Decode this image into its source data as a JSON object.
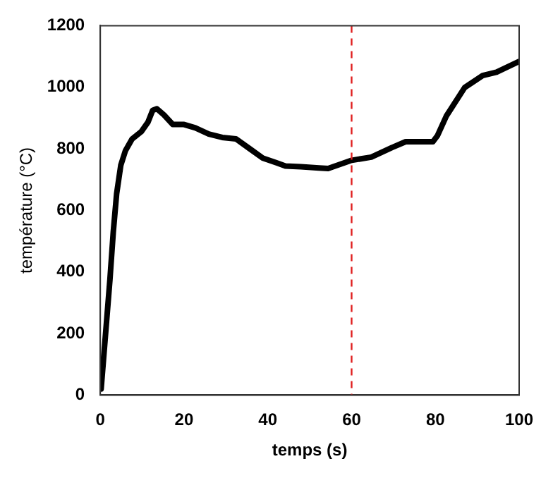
{
  "chart_data": {
    "type": "line",
    "xlabel": "temps (s)",
    "ylabel": "température (°C)",
    "x": [
      0.2,
      1.2,
      2.3,
      3.1,
      3.9,
      4.9,
      6,
      7.6,
      9.8,
      11.4,
      12.5,
      13.5,
      15.2,
      17.3,
      20,
      22.7,
      25.9,
      29.1,
      32.4,
      35.6,
      38.8,
      42,
      44.2,
      47.9,
      52.2,
      54.4,
      59.8,
      64.7,
      69.6,
      72.9,
      79.4,
      80.5,
      82.6,
      87,
      91.3,
      94.6,
      100
    ],
    "series": [
      {
        "color": "#000000",
        "values": [
          20,
          189,
          375,
          530,
          654,
          747,
          794,
          832,
          856,
          887,
          925,
          930,
          910,
          879,
          879,
          868,
          848,
          837,
          832,
          801,
          770,
          755,
          744,
          742,
          738,
          736,
          762,
          773,
          804,
          823,
          823,
          843,
          906,
          999,
          1038,
          1049,
          1084
        ]
      }
    ],
    "xlim": [
      0,
      100
    ],
    "xticks": [
      0,
      20,
      40,
      60,
      80,
      100
    ],
    "ylim": [
      0,
      1200
    ],
    "yticks": [
      0,
      200,
      400,
      600,
      800,
      1000,
      1200
    ],
    "ref_lines": [
      {
        "axis": "x",
        "value": 60,
        "color": "#e02020",
        "line_style": "dashed"
      }
    ],
    "grid": false,
    "legend": false,
    "marker": "none",
    "line_style": "solid"
  }
}
